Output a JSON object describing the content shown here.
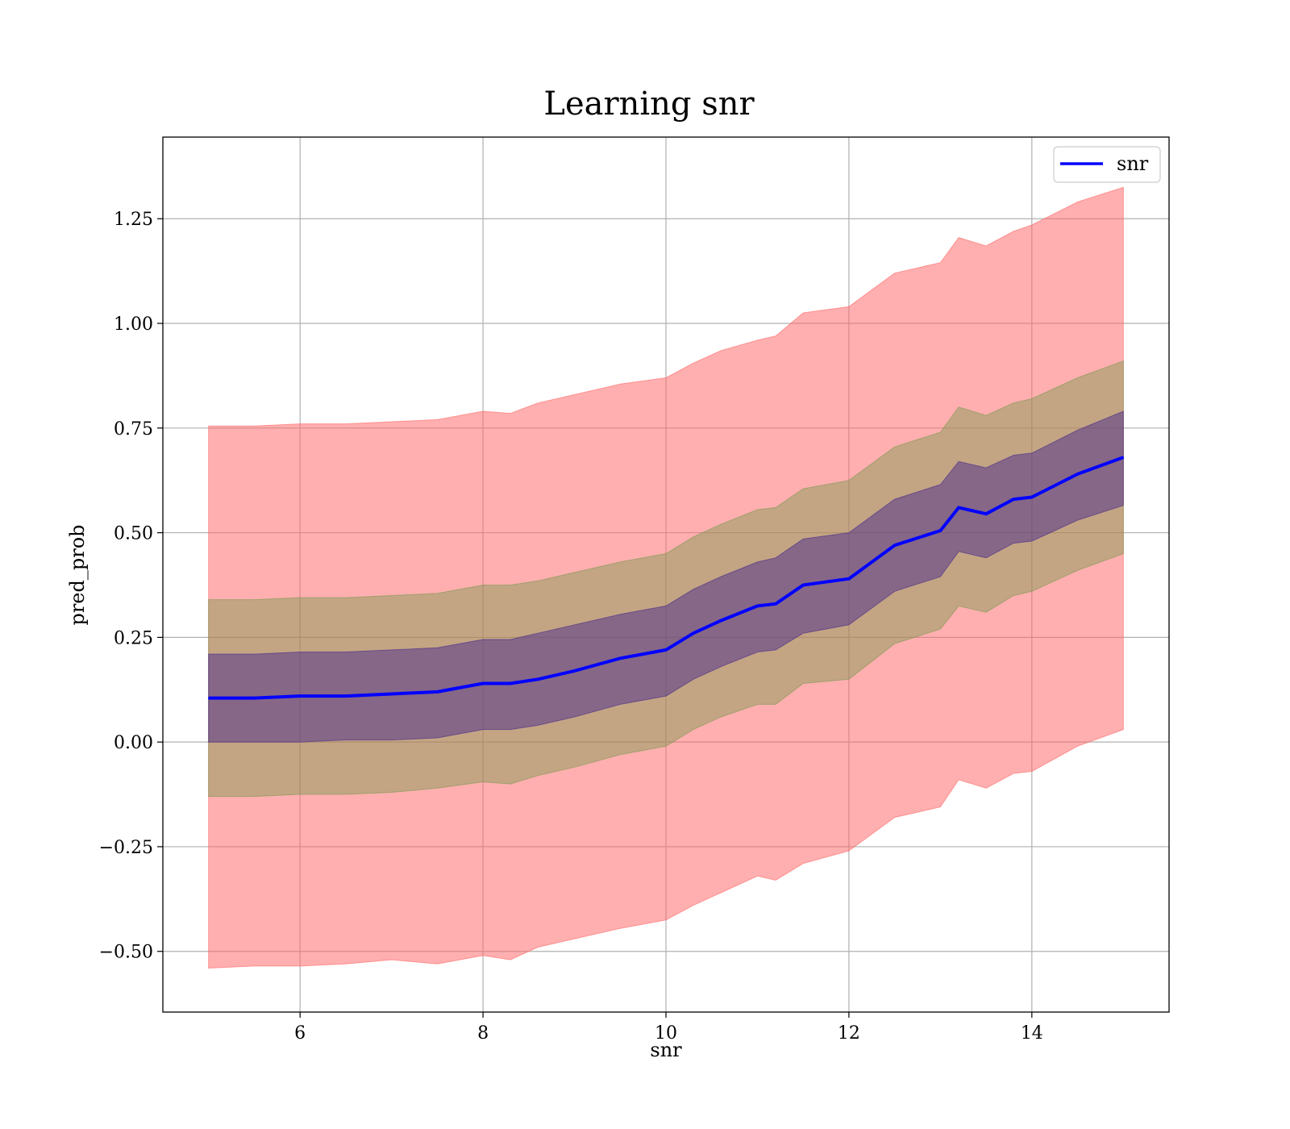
{
  "chart_data": {
    "type": "line",
    "title": "Learning snr",
    "xlabel": "snr",
    "ylabel": "pred_prob",
    "xlim": [
      4.5,
      15.5
    ],
    "ylim": [
      -0.645,
      1.445
    ],
    "grid": true,
    "legend_position": "top-right",
    "x_ticks": [
      6,
      8,
      10,
      12,
      14
    ],
    "x_tick_labels": [
      "6",
      "8",
      "10",
      "12",
      "14"
    ],
    "y_ticks": [
      -0.5,
      -0.25,
      0.0,
      0.25,
      0.5,
      0.75,
      1.0,
      1.25
    ],
    "y_tick_labels": [
      "−0.50",
      "−0.25",
      "0.00",
      "0.25",
      "0.50",
      "0.75",
      "1.00",
      "1.25"
    ],
    "x": [
      5.0,
      5.5,
      6.0,
      6.5,
      7.0,
      7.5,
      8.0,
      8.3,
      8.6,
      9.0,
      9.5,
      10.0,
      10.3,
      10.6,
      11.0,
      11.2,
      11.5,
      12.0,
      12.5,
      13.0,
      13.2,
      13.5,
      13.8,
      14.0,
      14.5,
      15.0
    ],
    "series": [
      {
        "name": "snr",
        "color": "#0000ff",
        "values": [
          0.105,
          0.105,
          0.11,
          0.11,
          0.115,
          0.12,
          0.14,
          0.14,
          0.15,
          0.17,
          0.2,
          0.22,
          0.26,
          0.29,
          0.325,
          0.33,
          0.375,
          0.39,
          0.47,
          0.505,
          0.56,
          0.545,
          0.58,
          0.585,
          0.64,
          0.68
        ]
      }
    ],
    "bands": [
      {
        "color": "#ff6666",
        "opacity": 0.52,
        "lower": [
          -0.54,
          -0.535,
          -0.535,
          -0.53,
          -0.52,
          -0.53,
          -0.51,
          -0.52,
          -0.49,
          -0.47,
          -0.445,
          -0.425,
          -0.39,
          -0.36,
          -0.32,
          -0.33,
          -0.29,
          -0.26,
          -0.18,
          -0.155,
          -0.09,
          -0.11,
          -0.075,
          -0.07,
          -0.01,
          0.03
        ],
        "upper": [
          0.755,
          0.755,
          0.76,
          0.76,
          0.765,
          0.77,
          0.79,
          0.785,
          0.81,
          0.83,
          0.855,
          0.87,
          0.905,
          0.935,
          0.96,
          0.97,
          1.025,
          1.04,
          1.12,
          1.145,
          1.205,
          1.185,
          1.22,
          1.235,
          1.29,
          1.325
        ]
      },
      {
        "color": "#7a9a50",
        "opacity": 0.45,
        "lower": [
          -0.13,
          -0.13,
          -0.125,
          -0.125,
          -0.12,
          -0.11,
          -0.095,
          -0.1,
          -0.08,
          -0.06,
          -0.03,
          -0.01,
          0.03,
          0.06,
          0.09,
          0.09,
          0.14,
          0.15,
          0.235,
          0.27,
          0.325,
          0.31,
          0.35,
          0.36,
          0.41,
          0.45
        ],
        "upper": [
          0.34,
          0.34,
          0.345,
          0.345,
          0.35,
          0.355,
          0.375,
          0.375,
          0.385,
          0.405,
          0.43,
          0.45,
          0.49,
          0.52,
          0.555,
          0.56,
          0.605,
          0.625,
          0.705,
          0.74,
          0.8,
          0.78,
          0.81,
          0.82,
          0.87,
          0.91
        ]
      },
      {
        "color": "#4a2a8a",
        "opacity": 0.5,
        "lower": [
          0.0,
          0.0,
          0.0,
          0.005,
          0.005,
          0.01,
          0.03,
          0.03,
          0.04,
          0.06,
          0.09,
          0.11,
          0.15,
          0.18,
          0.215,
          0.22,
          0.26,
          0.28,
          0.36,
          0.395,
          0.455,
          0.44,
          0.475,
          0.48,
          0.53,
          0.565
        ],
        "upper": [
          0.21,
          0.21,
          0.215,
          0.215,
          0.22,
          0.225,
          0.245,
          0.245,
          0.26,
          0.28,
          0.305,
          0.325,
          0.365,
          0.395,
          0.43,
          0.44,
          0.485,
          0.5,
          0.58,
          0.615,
          0.67,
          0.655,
          0.685,
          0.69,
          0.745,
          0.79
        ]
      }
    ]
  }
}
